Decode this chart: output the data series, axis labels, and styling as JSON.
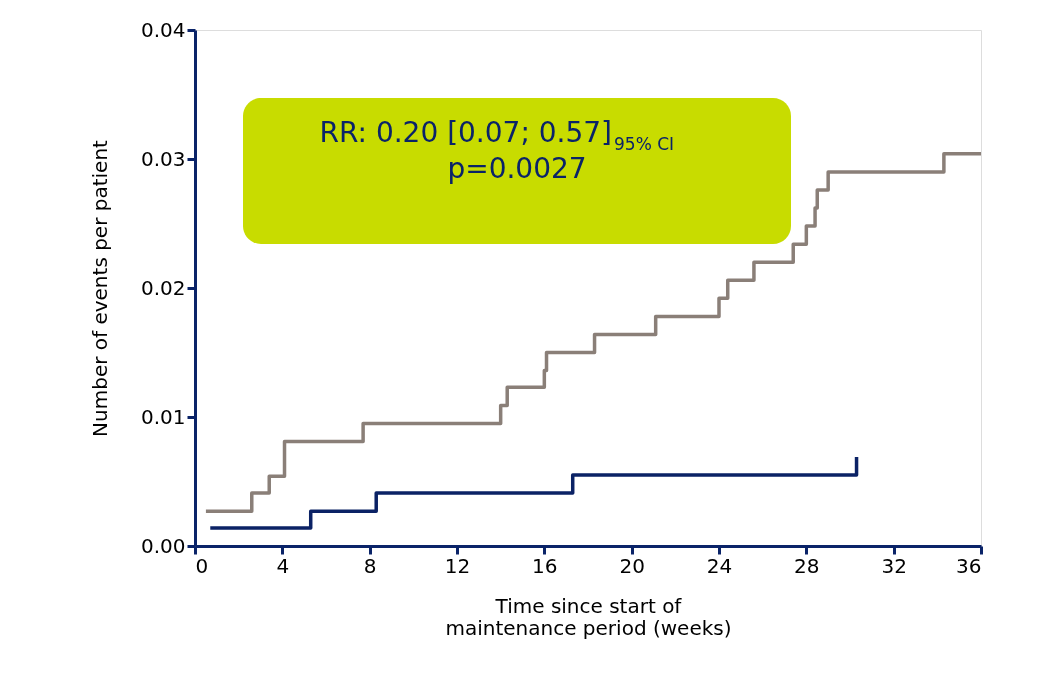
{
  "chart_data": {
    "type": "step",
    "xlabel": "Time since start of\nmaintenance period (weeks)",
    "ylabel": "Number of events per patient",
    "annotations": [
      "RR: 0.20 [0.07; 0.57]$_{95% CI}$",
      "p=0.0027"
    ],
    "xlim": [
      0,
      36
    ],
    "xticks": [
      0,
      4,
      8,
      12,
      16,
      20,
      24,
      28,
      32,
      36
    ],
    "ylim": [
      0,
      0.04
    ],
    "yticks": [
      {
        "value": 0,
        "label": "0.00"
      },
      {
        "value": 0.01,
        "label": "0.01"
      },
      {
        "value": 0.02,
        "label": "0.02"
      },
      {
        "value": 0.03,
        "label": "0.03"
      },
      {
        "value": 0.04,
        "label": "0.04"
      }
    ],
    "grid": false,
    "marker": "none",
    "line_style": "solid",
    "series": [
      {
        "color": "#8a7f78",
        "x": [
          0.5,
          2.6,
          3.4,
          4.1,
          7.7,
          14.0,
          14.3,
          16.0,
          16.1,
          18.3,
          21.1,
          24.0,
          24.4,
          25.6,
          27.4,
          28.0,
          28.4,
          28.5,
          29.0,
          34.3,
          36.0
        ],
        "values": [
          0.0027,
          0.0041,
          0.0054,
          0.0081,
          0.0095,
          0.0109,
          0.0123,
          0.0136,
          0.015,
          0.0164,
          0.0178,
          0.0192,
          0.0206,
          0.022,
          0.0234,
          0.0248,
          0.0262,
          0.0276,
          0.029,
          0.0304,
          0.0304
        ]
      },
      {
        "color": "#0b2265",
        "x": [
          0.7,
          5.3,
          8.3,
          17.3,
          30.3
        ],
        "values": [
          0.0014,
          0.0027,
          0.0041,
          0.0055,
          0.0069
        ]
      }
    ]
  }
}
